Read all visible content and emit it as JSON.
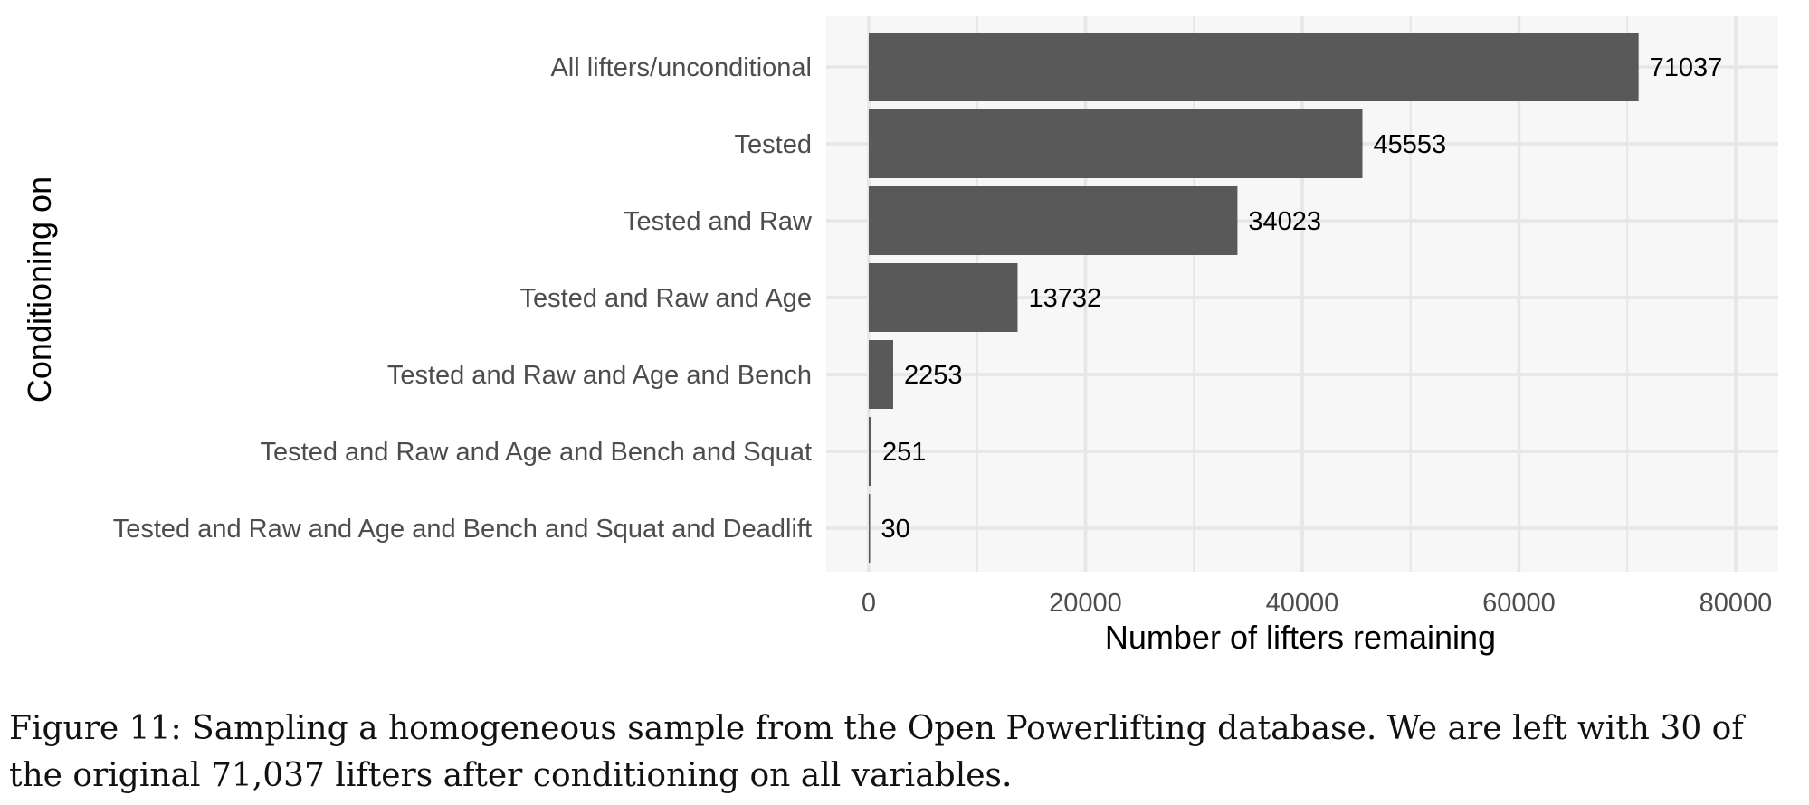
{
  "chart_data": {
    "type": "bar",
    "orientation": "horizontal",
    "categories": [
      "All lifters/unconditional",
      "Tested",
      "Tested and Raw",
      "Tested and Raw and Age",
      "Tested and Raw and Age and Bench",
      "Tested and Raw and Age and Bench and Squat",
      "Tested and Raw and Age and Bench and Squat and Deadlift"
    ],
    "values": [
      71037,
      45553,
      34023,
      13732,
      2253,
      251,
      30
    ],
    "data_labels": [
      "71037",
      "45553",
      "34023",
      "13732",
      "2253",
      "251",
      "30"
    ],
    "xlabel": "Number of lifters remaining",
    "ylabel": "Conditioning on",
    "xlim": [
      0,
      80000
    ],
    "xticks": [
      0,
      20000,
      40000,
      60000,
      80000
    ],
    "xtick_labels": [
      "0",
      "20000",
      "40000",
      "60000",
      "80000"
    ],
    "grid": true,
    "legend": "none",
    "colors": {
      "bar": "#595959",
      "panel_background": "#f7f7f7",
      "gridline": "#e6e6e6"
    }
  },
  "caption": "Figure 11: Sampling a homogeneous sample from the Open Powerlifting database. We are left with 30 of the original 71,037 lifters after conditioning on all variables."
}
